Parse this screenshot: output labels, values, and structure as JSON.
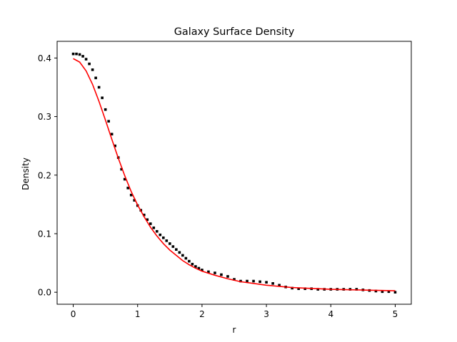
{
  "chart_data": {
    "type": "scatter",
    "title": "Galaxy Surface Density",
    "xlabel": "r",
    "ylabel": "Density",
    "xlim": [
      -0.25,
      5.25
    ],
    "ylim": [
      -0.0205,
      0.4285
    ],
    "xticks": [
      0,
      1,
      2,
      3,
      4,
      5
    ],
    "xtick_labels": [
      "0",
      "1",
      "2",
      "3",
      "4",
      "5"
    ],
    "yticks": [
      0.0,
      0.1,
      0.2,
      0.3,
      0.4
    ],
    "ytick_labels": [
      "0.0",
      "0.1",
      "0.2",
      "0.3",
      "0.4"
    ],
    "grid": false,
    "legend": "none",
    "series": [
      {
        "kind": "scatter",
        "color": "#000000",
        "points": [
          [
            0.0,
            0.407
          ],
          [
            0.05,
            0.407
          ],
          [
            0.1,
            0.406
          ],
          [
            0.15,
            0.403
          ],
          [
            0.2,
            0.398
          ],
          [
            0.25,
            0.39
          ],
          [
            0.3,
            0.38
          ],
          [
            0.35,
            0.366
          ],
          [
            0.4,
            0.35
          ],
          [
            0.45,
            0.332
          ],
          [
            0.5,
            0.312
          ],
          [
            0.55,
            0.292
          ],
          [
            0.6,
            0.27
          ],
          [
            0.65,
            0.25
          ],
          [
            0.7,
            0.23
          ],
          [
            0.75,
            0.21
          ],
          [
            0.8,
            0.193
          ],
          [
            0.85,
            0.178
          ],
          [
            0.9,
            0.166
          ],
          [
            0.95,
            0.157
          ],
          [
            1.0,
            0.148
          ],
          [
            1.05,
            0.14
          ],
          [
            1.1,
            0.132
          ],
          [
            1.15,
            0.124
          ],
          [
            1.2,
            0.117
          ],
          [
            1.25,
            0.11
          ],
          [
            1.3,
            0.104
          ],
          [
            1.35,
            0.098
          ],
          [
            1.4,
            0.093
          ],
          [
            1.45,
            0.088
          ],
          [
            1.5,
            0.083
          ],
          [
            1.55,
            0.078
          ],
          [
            1.6,
            0.073
          ],
          [
            1.65,
            0.068
          ],
          [
            1.7,
            0.063
          ],
          [
            1.75,
            0.058
          ],
          [
            1.8,
            0.053
          ],
          [
            1.85,
            0.048
          ],
          [
            1.9,
            0.044
          ],
          [
            1.95,
            0.041
          ],
          [
            2.0,
            0.038
          ],
          [
            2.1,
            0.035
          ],
          [
            2.2,
            0.033
          ],
          [
            2.3,
            0.03
          ],
          [
            2.4,
            0.027
          ],
          [
            2.5,
            0.022
          ],
          [
            2.6,
            0.019
          ],
          [
            2.7,
            0.019
          ],
          [
            2.8,
            0.019
          ],
          [
            2.9,
            0.018
          ],
          [
            3.0,
            0.017
          ],
          [
            3.1,
            0.015
          ],
          [
            3.2,
            0.012
          ],
          [
            3.3,
            0.009
          ],
          [
            3.4,
            0.007
          ],
          [
            3.5,
            0.006
          ],
          [
            3.6,
            0.006
          ],
          [
            3.7,
            0.006
          ],
          [
            3.8,
            0.005
          ],
          [
            3.9,
            0.005
          ],
          [
            4.0,
            0.005
          ],
          [
            4.1,
            0.005
          ],
          [
            4.2,
            0.005
          ],
          [
            4.3,
            0.005
          ],
          [
            4.4,
            0.005
          ],
          [
            4.5,
            0.004
          ],
          [
            4.6,
            0.003
          ],
          [
            4.7,
            0.002
          ],
          [
            4.8,
            0.001
          ],
          [
            4.9,
            0.001
          ],
          [
            5.0,
            0.0
          ]
        ]
      },
      {
        "kind": "line",
        "color": "#ff0000",
        "points": [
          [
            0.0,
            0.399
          ],
          [
            0.1,
            0.393
          ],
          [
            0.2,
            0.378
          ],
          [
            0.3,
            0.355
          ],
          [
            0.4,
            0.326
          ],
          [
            0.5,
            0.294
          ],
          [
            0.6,
            0.261
          ],
          [
            0.7,
            0.229
          ],
          [
            0.8,
            0.199
          ],
          [
            0.9,
            0.172
          ],
          [
            1.0,
            0.149
          ],
          [
            1.1,
            0.129
          ],
          [
            1.2,
            0.111
          ],
          [
            1.3,
            0.096
          ],
          [
            1.4,
            0.083
          ],
          [
            1.5,
            0.072
          ],
          [
            1.6,
            0.063
          ],
          [
            1.7,
            0.054
          ],
          [
            1.8,
            0.047
          ],
          [
            1.9,
            0.041
          ],
          [
            2.0,
            0.036
          ],
          [
            2.2,
            0.029
          ],
          [
            2.4,
            0.023
          ],
          [
            2.6,
            0.018
          ],
          [
            2.8,
            0.015
          ],
          [
            3.0,
            0.012
          ],
          [
            3.2,
            0.01
          ],
          [
            3.4,
            0.008
          ],
          [
            3.6,
            0.007
          ],
          [
            3.8,
            0.006
          ],
          [
            4.0,
            0.005
          ],
          [
            4.2,
            0.0045
          ],
          [
            4.4,
            0.004
          ],
          [
            4.6,
            0.0035
          ],
          [
            4.8,
            0.003
          ],
          [
            5.0,
            0.0025
          ]
        ]
      }
    ]
  }
}
